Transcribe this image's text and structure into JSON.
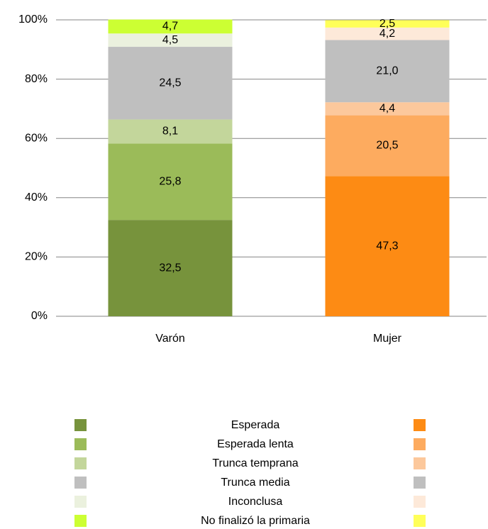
{
  "chart_data": {
    "type": "stacked_bar",
    "categories": [
      "Varón",
      "Mujer"
    ],
    "series": [
      {
        "name": "Esperada",
        "colors": [
          "#77933c",
          "#fd8b14"
        ],
        "values": [
          32.5,
          47.3
        ],
        "value_labels": [
          "32,5",
          "47,3"
        ]
      },
      {
        "name": "Esperada lenta",
        "colors": [
          "#9bbb59",
          "#fdab5f"
        ],
        "values": [
          25.8,
          20.5
        ],
        "value_labels": [
          "25,8",
          "20,5"
        ]
      },
      {
        "name": "Trunca temprana",
        "colors": [
          "#c3d69b",
          "#fcc89c"
        ],
        "values": [
          8.1,
          4.4
        ],
        "value_labels": [
          "8,1",
          "4,4"
        ]
      },
      {
        "name": "Trunca media",
        "colors": [
          "#bfbfbf",
          "#bfbfbf"
        ],
        "values": [
          24.5,
          21.0
        ],
        "value_labels": [
          "24,5",
          "21,0"
        ]
      },
      {
        "name": "Inconclusa",
        "colors": [
          "#ebf1de",
          "#fde9d9"
        ],
        "values": [
          4.5,
          4.2
        ],
        "value_labels": [
          "4,5",
          "4,2"
        ]
      },
      {
        "name": "No finalizó la primaria",
        "colors": [
          "#ccff33",
          "#ffff59"
        ],
        "values": [
          4.7,
          2.5
        ],
        "value_labels": [
          "4,7",
          "2,5"
        ]
      }
    ],
    "ylim": [
      0,
      100
    ],
    "yticks": [
      {
        "value": 0,
        "label": "0%"
      },
      {
        "value": 20,
        "label": "20%"
      },
      {
        "value": 40,
        "label": "40%"
      },
      {
        "value": 60,
        "label": "60%"
      },
      {
        "value": 80,
        "label": "80%"
      },
      {
        "value": 100,
        "label": "100%"
      }
    ],
    "grid": true
  }
}
